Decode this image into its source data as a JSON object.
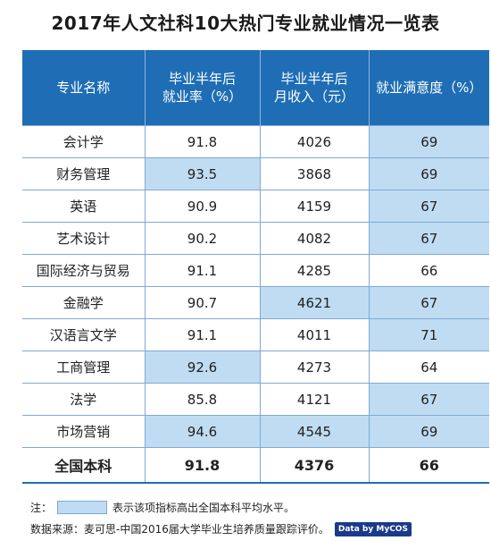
{
  "title": "2017年人文社科10大热门专业就业情况一览表",
  "headers": {
    "major": "专业名称",
    "employment_line1": "毕业半年后",
    "employment_line2": "就业率（%）",
    "income_line1": "毕业半年后",
    "income_line2": "月收入（元）",
    "satisfaction": "就业满意度（%）"
  },
  "rows": [
    {
      "major": "会计学",
      "employment": "91.8",
      "income": "4026",
      "satisfaction": "69"
    },
    {
      "major": "财务管理",
      "employment": "93.5",
      "income": "3868",
      "satisfaction": "69"
    },
    {
      "major": "英语",
      "employment": "90.9",
      "income": "4159",
      "satisfaction": "67"
    },
    {
      "major": "艺术设计",
      "employment": "90.2",
      "income": "4082",
      "satisfaction": "67"
    },
    {
      "major": "国际经济与贸易",
      "employment": "91.1",
      "income": "4285",
      "satisfaction": "66"
    },
    {
      "major": "金融学",
      "employment": "90.7",
      "income": "4621",
      "satisfaction": "67"
    },
    {
      "major": "汉语言文学",
      "employment": "91.1",
      "income": "4011",
      "satisfaction": "71"
    },
    {
      "major": "工商管理",
      "employment": "92.6",
      "income": "4273",
      "satisfaction": "64"
    },
    {
      "major": "法学",
      "employment": "85.8",
      "income": "4121",
      "satisfaction": "67"
    },
    {
      "major": "市场营销",
      "employment": "94.6",
      "income": "4545",
      "satisfaction": "69"
    }
  ],
  "total": {
    "major": "全国本科",
    "employment": "91.8",
    "income": "4376",
    "satisfaction": "66"
  },
  "note": {
    "prefix": "注：",
    "text": "表示该项指标高出全国本科平均水平。"
  },
  "source": {
    "text": "数据来源：麦可思-中国2016届大学毕业生培养质量跟踪评价。",
    "badge": "Data by MyCOS"
  },
  "colors": {
    "header_bg": "#1f6eb5",
    "highlight": "#bfdcf2",
    "border": "#7fa9d6"
  }
}
